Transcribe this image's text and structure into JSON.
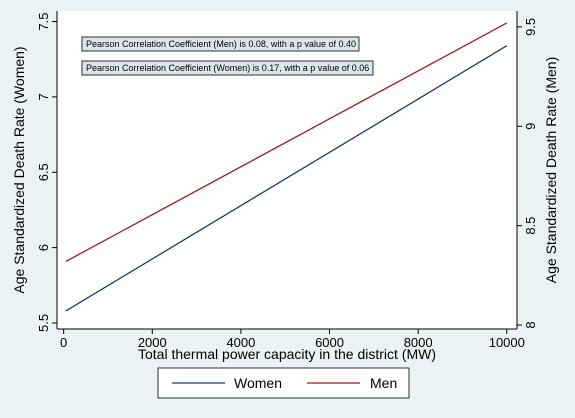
{
  "chart_data": {
    "type": "line",
    "x_values": [
      50,
      10000
    ],
    "xlabel": "Total thermal power capacity in the district (MW)",
    "xticks": [
      0,
      2000,
      4000,
      6000,
      8000,
      10000
    ],
    "xtick_labels": [
      "0",
      "2000",
      "4000",
      "6000",
      "8000",
      "10000"
    ],
    "xlim": [
      -150,
      10230
    ],
    "ylabel_left": "Age Standardized Death Rate (Women)",
    "ylim_left": [
      5.46,
      7.57
    ],
    "yticks_left": [
      5.5,
      6,
      6.5,
      7,
      7.5
    ],
    "ytick_labels_left": [
      "5.5",
      "6",
      "6.5",
      "7",
      "7.5"
    ],
    "ylabel_right": "Age Standardized Death Rate (Men)",
    "ylim_right": [
      7.98,
      9.58
    ],
    "yticks_right": [
      8,
      8.5,
      9,
      9.5
    ],
    "ytick_labels_right": [
      "8",
      "8.5",
      "9",
      "9.5"
    ],
    "series": [
      {
        "name": "Women",
        "axis": "left",
        "values": [
          5.58,
          7.34
        ],
        "color": "#1b3a6b"
      },
      {
        "name": "Men",
        "axis": "right",
        "values": [
          8.32,
          9.52
        ],
        "color": "#9e1b20"
      }
    ],
    "annotations": [
      "Pearson Correlation Coefficient (Men) is 0.08, with a p value of 0.40",
      "Pearson Correlation Coefficient (Women) is 0.17, with a p value of 0.06"
    ],
    "legend": [
      "Women",
      "Men"
    ],
    "legend_position": "bottom",
    "grid": false
  },
  "colors": {
    "background": "#eaf2f3",
    "plot_background": "#ffffff",
    "annotation_box": "#dde6ea"
  }
}
